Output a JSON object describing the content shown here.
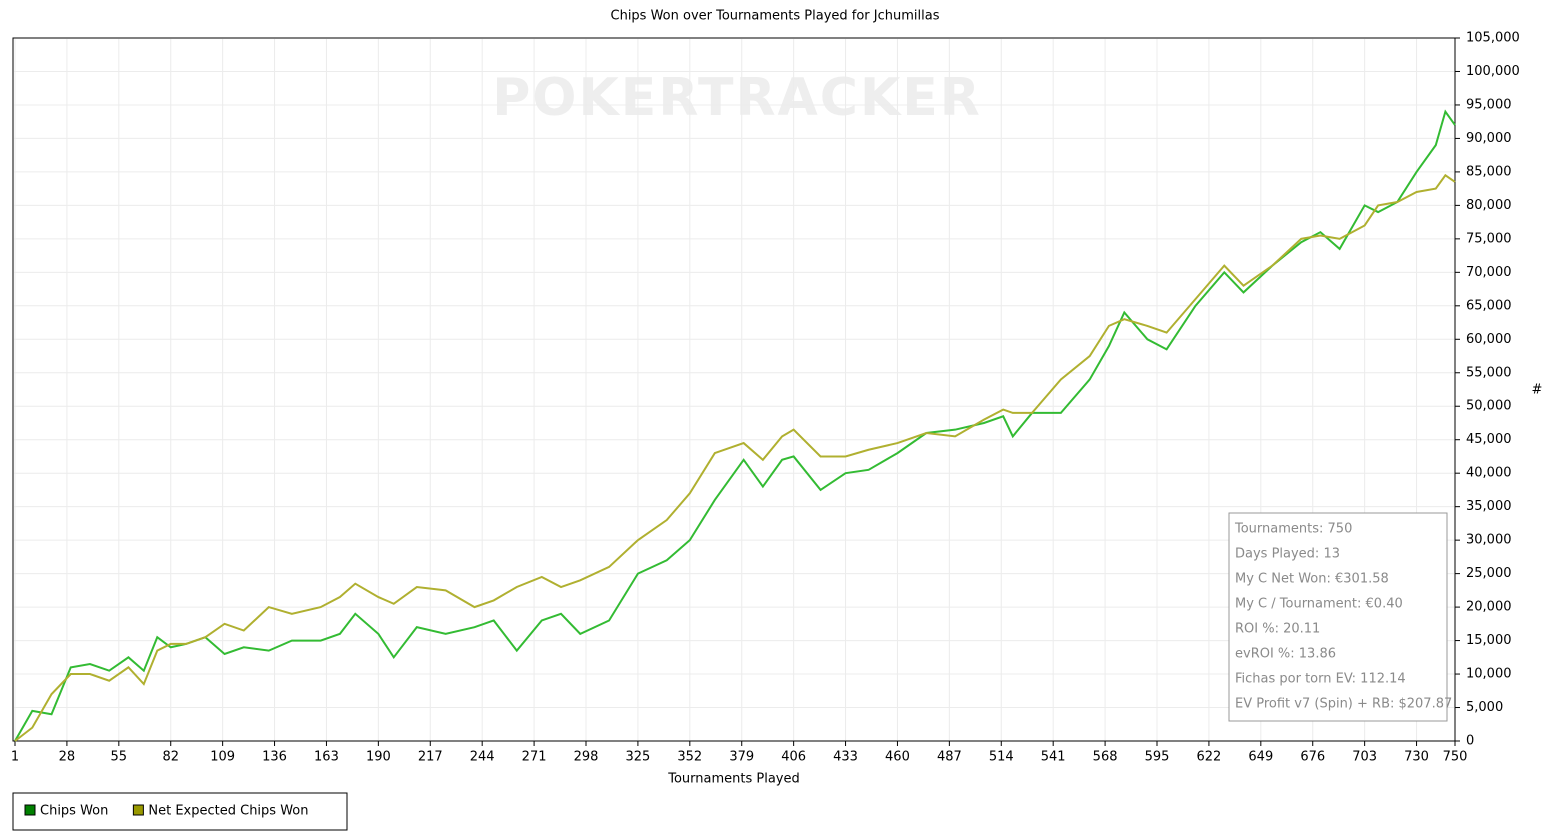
{
  "chart_data": {
    "type": "line",
    "title": "Chips Won over Tournaments Played for Jchumillas",
    "watermark": "POKERTRACKER",
    "x_label": "Tournaments Played",
    "y_label": "#",
    "xlim": [
      1,
      750
    ],
    "xticks": [
      1,
      28,
      55,
      82,
      109,
      136,
      163,
      190,
      217,
      244,
      271,
      298,
      325,
      352,
      379,
      406,
      433,
      460,
      487,
      514,
      541,
      568,
      595,
      622,
      649,
      676,
      703,
      730,
      750
    ],
    "ylim": [
      0,
      105000
    ],
    "yticks": [
      0,
      {
        "value": 5000,
        "label": "5,000"
      },
      {
        "value": 10000,
        "label": "10,000"
      },
      {
        "value": 15000,
        "label": "15,000"
      },
      {
        "value": 20000,
        "label": "20,000"
      },
      {
        "value": 25000,
        "label": "25,000"
      },
      {
        "value": 30000,
        "label": "30,000"
      },
      {
        "value": 35000,
        "label": "35,000"
      },
      {
        "value": 40000,
        "label": "40,000"
      },
      {
        "value": 45000,
        "label": "45,000"
      },
      {
        "value": 50000,
        "label": "50,000"
      },
      {
        "value": 55000,
        "label": "55,000"
      },
      {
        "value": 60000,
        "label": "60,000"
      },
      {
        "value": 65000,
        "label": "65,000"
      },
      {
        "value": 70000,
        "label": "70,000"
      },
      {
        "value": 75000,
        "label": "75,000"
      },
      {
        "value": 80000,
        "label": "80,000"
      },
      {
        "value": 85000,
        "label": "85,000"
      },
      {
        "value": 90000,
        "label": "90,000"
      },
      {
        "value": 95000,
        "label": "95,000"
      },
      {
        "value": 100000,
        "label": "100,000"
      },
      {
        "value": 105000,
        "label": "105,000"
      }
    ],
    "grid": true,
    "legend": "bottom-left",
    "x": [
      1,
      10,
      20,
      30,
      40,
      50,
      60,
      68,
      75,
      82,
      90,
      100,
      110,
      120,
      133,
      145,
      160,
      170,
      178,
      190,
      198,
      210,
      225,
      240,
      250,
      262,
      275,
      285,
      295,
      310,
      325,
      340,
      352,
      365,
      380,
      390,
      400,
      406,
      420,
      433,
      445,
      460,
      475,
      490,
      505,
      515,
      520,
      530,
      545,
      560,
      570,
      578,
      590,
      600,
      615,
      630,
      640,
      655,
      670,
      680,
      690,
      703,
      710,
      720,
      730,
      740,
      745,
      750
    ],
    "series": [
      {
        "name": "Chips Won",
        "color": "#33bb33",
        "legend_color": "#008000",
        "values": [
          0,
          4500,
          4000,
          11000,
          11500,
          10500,
          12500,
          10500,
          15500,
          14000,
          14500,
          15500,
          13000,
          14000,
          13500,
          15000,
          15000,
          16000,
          19000,
          16000,
          12500,
          17000,
          16000,
          17000,
          18000,
          13500,
          18000,
          19000,
          16000,
          18000,
          25000,
          27000,
          30000,
          36000,
          42000,
          38000,
          42000,
          42500,
          37500,
          40000,
          40500,
          43000,
          46000,
          46500,
          47500,
          48500,
          45500,
          49000,
          49000,
          54000,
          59000,
          64000,
          60000,
          58500,
          65000,
          70000,
          67000,
          71000,
          74500,
          76000,
          73500,
          80000,
          79000,
          80500,
          85000,
          89000,
          94000,
          92000
        ]
      },
      {
        "name": "Net Expected Chips Won",
        "color": "#b0b030",
        "legend_color": "#999900",
        "values": [
          0,
          2000,
          7000,
          10000,
          10000,
          9000,
          11000,
          8500,
          13500,
          14500,
          14500,
          15500,
          17500,
          16500,
          20000,
          19000,
          20000,
          21500,
          23500,
          21500,
          20500,
          23000,
          22500,
          20000,
          21000,
          23000,
          24500,
          23000,
          24000,
          26000,
          30000,
          33000,
          37000,
          43000,
          44500,
          42000,
          45500,
          46500,
          42500,
          42500,
          43500,
          44500,
          46000,
          45500,
          48000,
          49500,
          49000,
          49000,
          54000,
          57500,
          62000,
          63000,
          62000,
          61000,
          66000,
          71000,
          68000,
          71000,
          75000,
          75500,
          75000,
          77000,
          80000,
          80500,
          82000,
          82500,
          84500,
          83500
        ]
      }
    ],
    "annotations": [
      "Tournaments: 750",
      "Days Played: 13",
      "My C Net Won: €301.58",
      "My C / Tournament: €0.40",
      "ROI %: 20.11",
      "evROI %: 13.86",
      "Fichas por torn EV: 112.14",
      "EV Profit v7 (Spin) + RB: $207.87"
    ]
  }
}
